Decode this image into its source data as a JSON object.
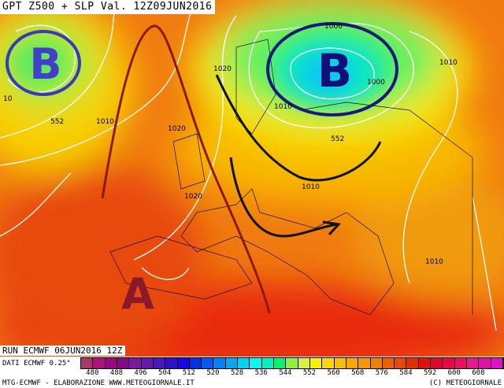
{
  "header": {
    "title": "GPT Z500 + SLP Val. 12Z09JUN2016"
  },
  "map": {
    "pressure_centers": [
      {
        "type": "low",
        "letter": "B",
        "where": "north-atlantic"
      },
      {
        "type": "low",
        "letter": "B",
        "where": "scandinavia"
      },
      {
        "type": "high",
        "letter": "A",
        "where": "iberia"
      }
    ],
    "isobar_labels": [
      "1000",
      "1010",
      "1020",
      "1010",
      "1000",
      "552",
      "1010",
      "552",
      "1020",
      "1020",
      "1010",
      "1010",
      "10"
    ]
  },
  "run_info": "RUN ECMWF 06JUN2016 12Z",
  "data_info": "DATI ECMWF 0.25°",
  "legend": {
    "ticks": [
      "480",
      "488",
      "496",
      "504",
      "512",
      "520",
      "528",
      "536",
      "544",
      "552",
      "560",
      "568",
      "576",
      "584",
      "592",
      "600",
      "608"
    ],
    "colors": [
      "#a8386c",
      "#b0107a",
      "#98087e",
      "#880888",
      "#7a18a0",
      "#6818a8",
      "#4a18b8",
      "#3010c8",
      "#1808e0",
      "#0030e8",
      "#0858f0",
      "#0880f0",
      "#08a8f0",
      "#08d0f8",
      "#08f8f0",
      "#08f0c0",
      "#08f070",
      "#90f040",
      "#d8f040",
      "#f8f000",
      "#f8d800",
      "#f8c000",
      "#f8a800",
      "#f89800",
      "#f08000",
      "#e86000",
      "#e84800",
      "#e03000",
      "#e01010",
      "#e00828",
      "#e80848",
      "#e81060",
      "#e81888",
      "#e010a8",
      "#e010c8"
    ]
  },
  "footer": {
    "left": "MTG-ECMWF - ELABORAZIONE WWW.METEOGIORNALE.IT",
    "right": "(C) METEOGIORNALE"
  }
}
